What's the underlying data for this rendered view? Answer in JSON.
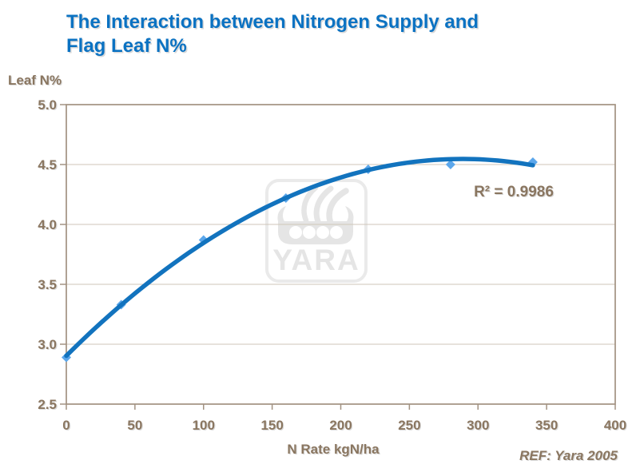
{
  "header": {
    "title_line1": "The Interaction between Nitrogen Supply and",
    "title_line2": "Flag Leaf N%"
  },
  "chart_data": {
    "type": "scatter",
    "title": "The Interaction between Nitrogen Supply and Flag Leaf N%",
    "ylabel": "Leaf N%",
    "xlabel": "N Rate kgN/ha",
    "x": [
      0,
      40,
      100,
      160,
      220,
      280,
      340
    ],
    "y": [
      2.89,
      3.33,
      3.87,
      4.22,
      4.46,
      4.5,
      4.52
    ],
    "xlim": [
      0,
      400
    ],
    "ylim": [
      2.5,
      5.0
    ],
    "xticks": [
      0,
      50,
      100,
      150,
      200,
      250,
      300,
      350,
      400
    ],
    "yticks": [
      2.5,
      3.0,
      3.5,
      4.0,
      4.5,
      5.0
    ],
    "grid": "horizontal",
    "legend": "none",
    "trendline": {
      "type": "quadratic",
      "r_squared_label": "R² = 0.9986"
    },
    "ref": "REF: Yara 2005",
    "watermark": "YARA",
    "colors": {
      "title": "#0B72C2",
      "trendline": "#1273BE",
      "marker": "#5CA7EB",
      "axis_text": "#8A7660",
      "axis_line": "#A29282",
      "gridline": "#CFC6B8",
      "watermark": "#E5E5E5"
    }
  }
}
